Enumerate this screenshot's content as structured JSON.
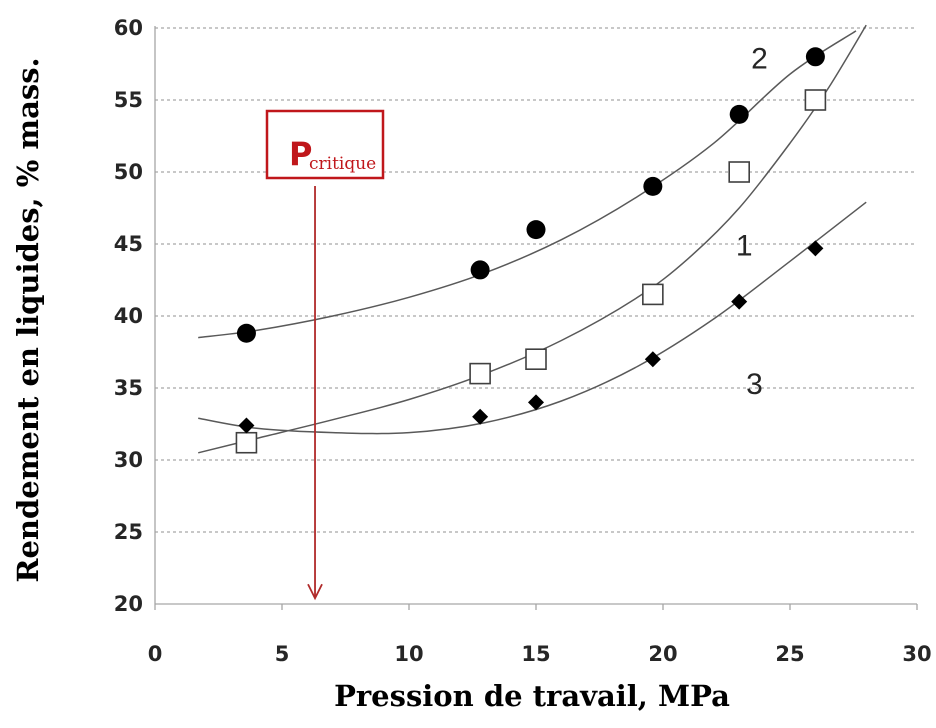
{
  "chart_data": {
    "type": "scatter",
    "title": "",
    "xlabel": "Pression de travail, MPa",
    "ylabel": "Rendement en liquides, % mass.",
    "xlim": [
      0,
      30
    ],
    "ylim": [
      20,
      60
    ],
    "x_ticks": [
      "0",
      "5",
      "10",
      "15",
      "20",
      "25",
      "30"
    ],
    "y_ticks": [
      "20",
      "25",
      "30",
      "35",
      "40",
      "45",
      "50",
      "55",
      "60"
    ],
    "grid": "horizontal dashed",
    "legend": "none",
    "series": [
      {
        "name": "2",
        "marker": "filled-circle",
        "x": [
          3.6,
          12.8,
          15.0,
          19.6,
          23.0,
          26.0
        ],
        "y": [
          38.8,
          43.2,
          46.0,
          49.0,
          54.0,
          58.0
        ],
        "trend_x": [
          1.7,
          4.0,
          7.0,
          10.0,
          13.0,
          16.0,
          19.0,
          22.0,
          25.0,
          27.6
        ],
        "trend_y": [
          38.5,
          39.0,
          40.0,
          41.3,
          43.0,
          45.3,
          48.3,
          52.0,
          56.8,
          59.8
        ]
      },
      {
        "name": "1",
        "marker": "open-square",
        "x": [
          3.6,
          12.8,
          15.0,
          19.6,
          23.0,
          26.0
        ],
        "y": [
          31.2,
          36.0,
          37.0,
          41.5,
          50.0,
          55.0
        ],
        "trend_x": [
          1.7,
          4.0,
          7.0,
          10.0,
          13.0,
          16.0,
          19.0,
          21.0,
          23.0,
          25.0,
          26.5,
          28.0
        ],
        "trend_y": [
          30.5,
          31.5,
          32.8,
          34.2,
          36.0,
          38.3,
          41.3,
          44.0,
          47.5,
          52.0,
          55.8,
          60.2
        ]
      },
      {
        "name": "3",
        "marker": "filled-diamond",
        "x": [
          3.6,
          12.8,
          15.0,
          19.6,
          23.0,
          26.0
        ],
        "y": [
          32.4,
          33.0,
          34.0,
          37.0,
          41.0,
          44.7
        ],
        "trend_x": [
          1.7,
          4.0,
          7.0,
          10.0,
          13.0,
          16.0,
          19.0,
          22.0,
          25.0,
          28.0
        ],
        "trend_y": [
          32.9,
          32.2,
          31.9,
          31.9,
          32.6,
          34.1,
          36.5,
          39.8,
          43.8,
          47.9
        ]
      }
    ],
    "curve_labels": [
      {
        "text": "2",
        "x": 23.8,
        "y": 57.2
      },
      {
        "text": "1",
        "x": 23.2,
        "y": 44.2
      },
      {
        "text": "3",
        "x": 23.6,
        "y": 34.6
      }
    ],
    "annotation": {
      "main": "P",
      "sub": "critique",
      "arrow_x": 6.3,
      "arrow_y_end": 20.4,
      "color": "#c0171b"
    }
  }
}
